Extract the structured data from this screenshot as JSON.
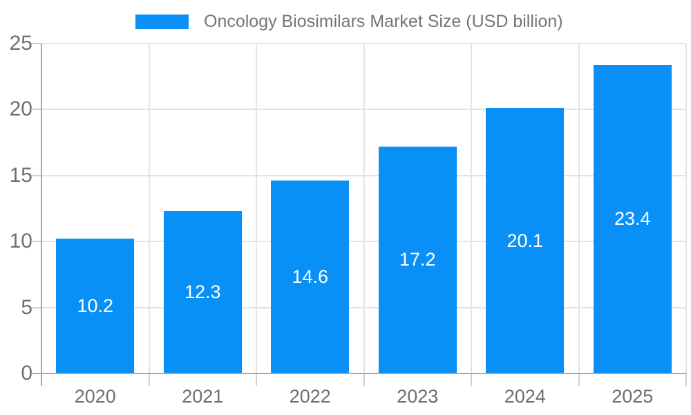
{
  "legend": {
    "label": "Oncology Biosimilars Market Size (USD billion)"
  },
  "chart_data": {
    "type": "bar",
    "title": "Oncology Biosimilars Market Size (USD billion)",
    "series_name": "Oncology Biosimilars Market Size (USD billion)",
    "categories": [
      "2020",
      "2021",
      "2022",
      "2023",
      "2024",
      "2025"
    ],
    "values": [
      10.2,
      12.3,
      14.6,
      17.2,
      20.1,
      23.4
    ],
    "value_labels": [
      "10.2",
      "12.3",
      "14.6",
      "17.2",
      "20.1",
      "23.4"
    ],
    "xlabel": "",
    "ylabel": "",
    "ylim": [
      0,
      25
    ],
    "yticks": [
      0,
      5,
      10,
      15,
      20,
      25
    ],
    "grid": true,
    "legend_position": "top",
    "colors": {
      "bar": "#0990f7",
      "axis": "#a8a8a8",
      "gridline": "#e4e4e4",
      "outer_tick": "#cfcfcf",
      "axis_label": "#6f6f6f",
      "legend_text": "#757575",
      "value_label": "#ffffff"
    }
  }
}
